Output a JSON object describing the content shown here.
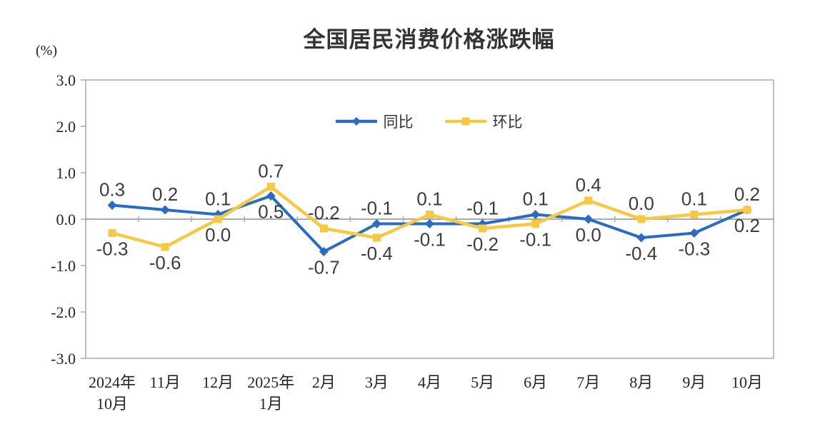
{
  "chart_data": {
    "type": "line",
    "title": "全国居民消费价格涨跌幅",
    "unit_label": "(%)",
    "categories": [
      [
        "2024年",
        "10月"
      ],
      [
        "11月"
      ],
      [
        "12月"
      ],
      [
        "2025年",
        "1月"
      ],
      [
        "2月"
      ],
      [
        "3月"
      ],
      [
        "4月"
      ],
      [
        "5月"
      ],
      [
        "6月"
      ],
      [
        "7月"
      ],
      [
        "8月"
      ],
      [
        "9月"
      ],
      [
        "10月"
      ]
    ],
    "series": [
      {
        "name": "同比",
        "color": "#2B6CC3",
        "marker": "diamond",
        "values": [
          0.3,
          0.2,
          0.1,
          0.5,
          -0.7,
          -0.1,
          -0.1,
          -0.1,
          0.1,
          0.0,
          -0.4,
          -0.3,
          0.2
        ]
      },
      {
        "name": "环比",
        "color": "#F6C944",
        "marker": "square",
        "values": [
          -0.3,
          -0.6,
          0.0,
          0.7,
          -0.2,
          -0.4,
          0.1,
          -0.2,
          -0.1,
          0.4,
          0.0,
          0.1,
          0.2
        ]
      }
    ],
    "ylim": [
      -3.0,
      3.0
    ],
    "yticks": [
      "3.0",
      "2.0",
      "1.0",
      "0.0",
      "-1.0",
      "-2.0",
      "-3.0"
    ],
    "grid": "zero-line-only",
    "legend_position": "top-center-inside",
    "data_labels": true,
    "axis_color": "#ABABAB",
    "tick_label_color": "#262626",
    "data_label_color": "#3D3D3D"
  }
}
